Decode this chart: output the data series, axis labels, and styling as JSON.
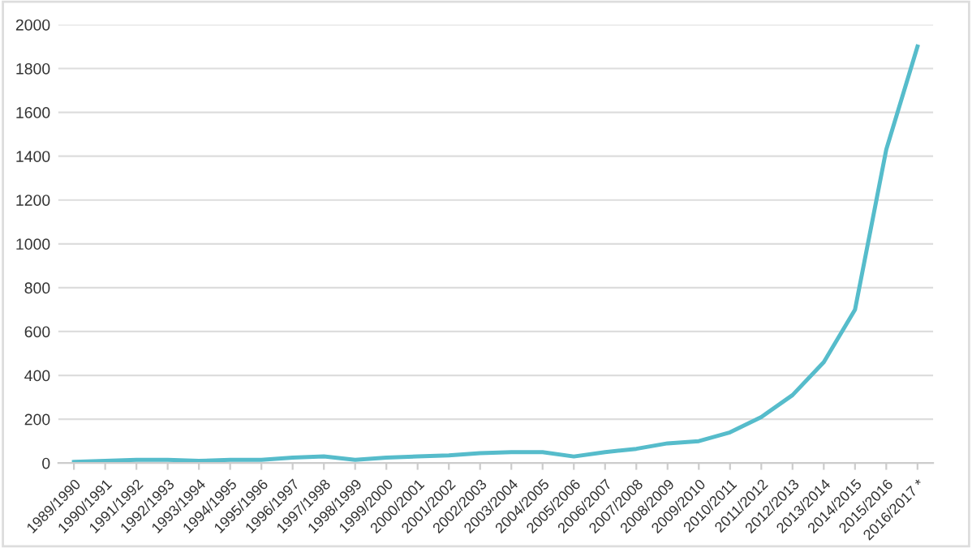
{
  "chart_data": {
    "type": "line",
    "categories": [
      "1989/1990",
      "1990/1991",
      "1991/1992",
      "1992/1993",
      "1993/1994",
      "1994/1995",
      "1995/1996",
      "1996/1997",
      "1997/1998",
      "1998/1999",
      "1999/2000",
      "2000/2001",
      "2001/2002",
      "2002/2003",
      "2003/2004",
      "2004/2005",
      "2005/2006",
      "2006/2007",
      "2007/2008",
      "2008/2009",
      "2009/2010",
      "2010/2011",
      "2011/2012",
      "2012/2013",
      "2013/2014",
      "2014/2015",
      "2015/2016",
      "2016/2017 *"
    ],
    "series": [
      {
        "color": "#56bccb",
        "values": [
          5,
          10,
          15,
          15,
          10,
          15,
          15,
          25,
          30,
          15,
          25,
          30,
          35,
          45,
          50,
          50,
          30,
          50,
          65,
          90,
          100,
          140,
          210,
          310,
          460,
          700,
          1430,
          1900
        ]
      }
    ],
    "ylim": [
      0,
      2000
    ],
    "yticks": [
      0,
      200,
      400,
      600,
      800,
      1000,
      1200,
      1400,
      1600,
      1800,
      2000
    ],
    "grid": "y",
    "line_style": "solid"
  }
}
